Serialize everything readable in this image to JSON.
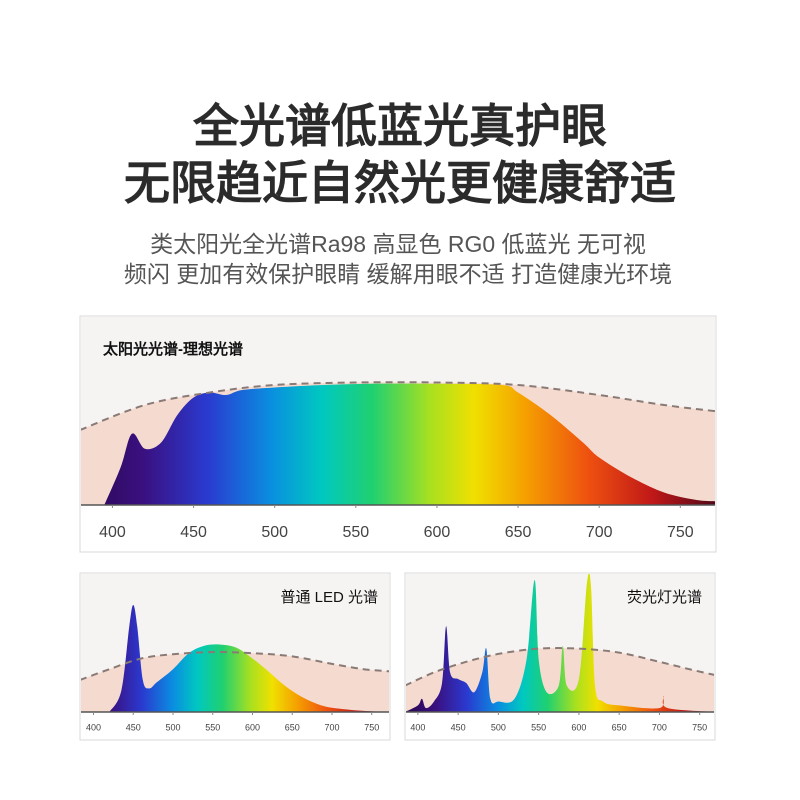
{
  "header": {
    "title": [
      "全光谱低蓝光真护眼",
      "无限趋近自然光更健康舒适"
    ],
    "subtitle": [
      "类太阳光全光谱Ra98 高显色 RG0 低蓝光 无可视",
      "频闪 更加有效保护眼睛 缓解用眼不适  打造健康光环境"
    ]
  },
  "chart_data": [
    {
      "type": "area",
      "title": "太阳光光谱-理想光谱",
      "x": [
        395,
        405,
        412,
        420,
        430,
        440,
        450,
        460,
        470,
        480,
        500,
        530,
        560,
        600,
        640,
        650,
        670,
        690,
        700,
        720,
        740,
        760,
        772
      ],
      "values": [
        0,
        30,
        57,
        45,
        50,
        72,
        86,
        90,
        88,
        92,
        94,
        96,
        97,
        97,
        96,
        90,
        72,
        50,
        38,
        22,
        10,
        4,
        3
      ],
      "reference_x": [
        380,
        420,
        460,
        500,
        550,
        600,
        650,
        700,
        740,
        772
      ],
      "reference_values": [
        60,
        80,
        90,
        96,
        98,
        98,
        96,
        88,
        80,
        75
      ],
      "xlim": [
        380,
        772
      ],
      "ylim": [
        0,
        100
      ],
      "xticks": [
        400,
        450,
        500,
        550,
        600,
        650,
        700,
        750
      ],
      "grid": false
    },
    {
      "type": "area",
      "title": "普通 LED 光谱",
      "x": [
        420,
        435,
        445,
        450,
        455,
        462,
        470,
        480,
        500,
        520,
        540,
        560,
        580,
        600,
        620,
        640,
        660,
        680,
        700,
        740,
        773
      ],
      "values": [
        0,
        20,
        80,
        100,
        80,
        30,
        22,
        28,
        40,
        55,
        62,
        63,
        60,
        50,
        38,
        25,
        15,
        8,
        4,
        1,
        0
      ],
      "reference_x": [
        383,
        420,
        460,
        500,
        550,
        600,
        650,
        700,
        740,
        773
      ],
      "reference_values": [
        30,
        40,
        50,
        54,
        56,
        55,
        52,
        45,
        40,
        38
      ],
      "xlim": [
        383,
        773
      ],
      "ylim": [
        0,
        100
      ],
      "xticks": [
        400,
        450,
        500,
        550,
        600,
        650,
        700,
        750
      ],
      "grid": false
    },
    {
      "type": "area",
      "title": "荧光灯光谱",
      "x": [
        384,
        400,
        405,
        410,
        420,
        430,
        435,
        440,
        450,
        460,
        470,
        480,
        485,
        490,
        500,
        520,
        535,
        545,
        550,
        560,
        575,
        580,
        585,
        600,
        610,
        615,
        620,
        630,
        650,
        700,
        705,
        710,
        769
      ],
      "values": [
        0,
        5,
        10,
        3,
        8,
        22,
        65,
        30,
        25,
        22,
        15,
        30,
        48,
        10,
        8,
        10,
        40,
        100,
        40,
        15,
        20,
        50,
        20,
        25,
        98,
        95,
        20,
        8,
        5,
        3,
        12,
        3,
        0
      ],
      "reference_x": [
        384,
        420,
        460,
        500,
        550,
        600,
        650,
        700,
        740,
        769
      ],
      "reference_values": [
        20,
        30,
        38,
        44,
        48,
        48,
        45,
        38,
        32,
        28
      ],
      "xlim": [
        384,
        769
      ],
      "ylim": [
        0,
        100
      ],
      "xticks": [
        400,
        450,
        500,
        550,
        600,
        650,
        700,
        750
      ],
      "grid": false
    }
  ]
}
